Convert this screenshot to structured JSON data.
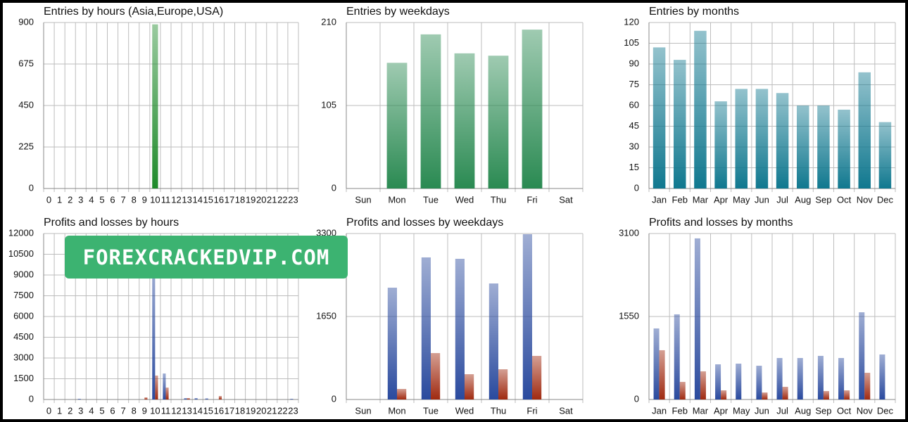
{
  "chart_data": [
    {
      "type": "bar",
      "title": "Entries by hours (Asia,Europe,USA)",
      "categories": [
        "0",
        "1",
        "2",
        "3",
        "4",
        "5",
        "6",
        "7",
        "8",
        "9",
        "10",
        "11",
        "12",
        "13",
        "14",
        "15",
        "16",
        "17",
        "18",
        "19",
        "20",
        "21",
        "22",
        "23"
      ],
      "series": [
        {
          "color": "#1e8a2a",
          "values": [
            0,
            0,
            0,
            0,
            0,
            0,
            0,
            0,
            0,
            0,
            890,
            0,
            0,
            0,
            0,
            0,
            0,
            0,
            0,
            0,
            0,
            0,
            0,
            0
          ]
        }
      ],
      "ylim": [
        0,
        900
      ],
      "yticks": [
        0,
        225,
        450,
        675,
        900
      ],
      "grid": true
    },
    {
      "type": "bar",
      "title": "Entries by weekdays",
      "categories": [
        "Sun",
        "Mon",
        "Tue",
        "Wed",
        "Thu",
        "Fri",
        "Sat"
      ],
      "series": [
        {
          "color": "#2a8a52",
          "values": [
            0,
            159,
            195,
            171,
            168,
            201,
            0
          ]
        }
      ],
      "ylim": [
        0,
        210
      ],
      "yticks": [
        0,
        105,
        210
      ],
      "grid": true
    },
    {
      "type": "bar",
      "title": "Entries by months",
      "categories": [
        "Jan",
        "Feb",
        "Mar",
        "Apr",
        "May",
        "Jun",
        "Jul",
        "Aug",
        "Sep",
        "Oct",
        "Nov",
        "Dec"
      ],
      "series": [
        {
          "color": "#10788f",
          "values": [
            102,
            93,
            114,
            63,
            72,
            72,
            69,
            60,
            60,
            57,
            84,
            48
          ]
        }
      ],
      "ylim": [
        0,
        120
      ],
      "yticks": [
        0,
        15,
        30,
        45,
        60,
        75,
        90,
        105,
        120
      ],
      "grid": true
    },
    {
      "type": "bar",
      "title": "Profits and losses by hours",
      "categories": [
        "0",
        "1",
        "2",
        "3",
        "4",
        "5",
        "6",
        "7",
        "8",
        "9",
        "10",
        "11",
        "12",
        "13",
        "14",
        "15",
        "16",
        "17",
        "18",
        "19",
        "20",
        "21",
        "22",
        "23"
      ],
      "series": [
        {
          "color": "#2a4a9e",
          "values": [
            0,
            0,
            0,
            50,
            0,
            0,
            0,
            0,
            0,
            0,
            9500,
            1880,
            0,
            100,
            100,
            80,
            0,
            0,
            0,
            0,
            0,
            0,
            0,
            50
          ]
        },
        {
          "color": "#a02a10",
          "values": [
            0,
            0,
            0,
            0,
            0,
            0,
            0,
            0,
            0,
            150,
            1730,
            860,
            0,
            100,
            0,
            0,
            250,
            0,
            0,
            0,
            0,
            0,
            0,
            0
          ]
        }
      ],
      "ylim": [
        0,
        12000
      ],
      "yticks": [
        0,
        1500,
        3000,
        4500,
        6000,
        7500,
        9000,
        10500,
        12000
      ],
      "grid": true
    },
    {
      "type": "bar",
      "title": "Profits and losses by weekdays",
      "categories": [
        "Sun",
        "Mon",
        "Tue",
        "Wed",
        "Thu",
        "Fri",
        "Sat"
      ],
      "series": [
        {
          "color": "#2a4a9e",
          "values": [
            0,
            2223,
            2825,
            2797,
            2307,
            3286,
            0
          ]
        },
        {
          "color": "#a02a10",
          "values": [
            0,
            210,
            923,
            503,
            601,
            867,
            0
          ]
        }
      ],
      "ylim": [
        0,
        3300
      ],
      "yticks": [
        0,
        1650,
        3300
      ],
      "grid": true
    },
    {
      "type": "bar",
      "title": "Profits and losses by months",
      "categories": [
        "Jan",
        "Feb",
        "Mar",
        "Apr",
        "May",
        "Jun",
        "Jul",
        "Aug",
        "Sep",
        "Oct",
        "Nov",
        "Dec"
      ],
      "series": [
        {
          "color": "#2a4a9e",
          "values": [
            1327,
            1590,
            3009,
            657,
            670,
            631,
            775,
            775,
            815,
            775,
            1629,
            841
          ]
        },
        {
          "color": "#a02a10",
          "values": [
            920,
            329,
            526,
            171,
            0,
            131,
            237,
            0,
            158,
            171,
            499,
            0
          ]
        }
      ],
      "ylim": [
        0,
        3100
      ],
      "yticks": [
        0,
        1550,
        3100
      ],
      "grid": true
    }
  ],
  "watermark": "FOREXCRACKEDVIP.COM"
}
